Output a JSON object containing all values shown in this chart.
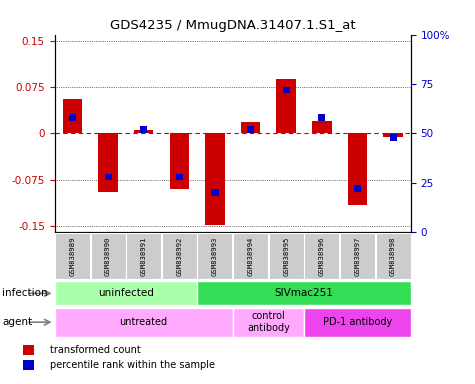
{
  "title": "GDS4235 / MmugDNA.31407.1.S1_at",
  "samples": [
    "GSM838989",
    "GSM838990",
    "GSM838991",
    "GSM838992",
    "GSM838993",
    "GSM838994",
    "GSM838995",
    "GSM838996",
    "GSM838997",
    "GSM838998"
  ],
  "transformed_count": [
    0.055,
    -0.095,
    0.005,
    -0.09,
    -0.148,
    0.018,
    0.088,
    0.02,
    -0.115,
    -0.005
  ],
  "percentile_rank": [
    58,
    28,
    52,
    28,
    20,
    52,
    72,
    58,
    22,
    48
  ],
  "ylim": [
    -0.16,
    0.16
  ],
  "yticks_left": [
    -0.15,
    -0.075,
    0,
    0.075,
    0.15
  ],
  "yticks_right": [
    0,
    25,
    50,
    75,
    100
  ],
  "bar_color": "#cc0000",
  "blue_color": "#0000cc",
  "infection_groups": [
    {
      "label": "uninfected",
      "start": 0,
      "end": 4,
      "color": "#aaffaa"
    },
    {
      "label": "SIVmac251",
      "start": 4,
      "end": 10,
      "color": "#33dd55"
    }
  ],
  "agent_groups": [
    {
      "label": "untreated",
      "start": 0,
      "end": 5,
      "color": "#ffaaff"
    },
    {
      "label": "control\nantibody",
      "start": 5,
      "end": 7,
      "color": "#ffaaff"
    },
    {
      "label": "PD-1 antibody",
      "start": 7,
      "end": 10,
      "color": "#ee44ee"
    }
  ],
  "legend_items": [
    {
      "label": "transformed count",
      "color": "#cc0000"
    },
    {
      "label": "percentile rank within the sample",
      "color": "#0000cc"
    }
  ],
  "infection_label": "infection",
  "agent_label": "agent",
  "background_color": "#ffffff",
  "zero_line_color": "#cc0000",
  "sample_box_color": "#cccccc"
}
